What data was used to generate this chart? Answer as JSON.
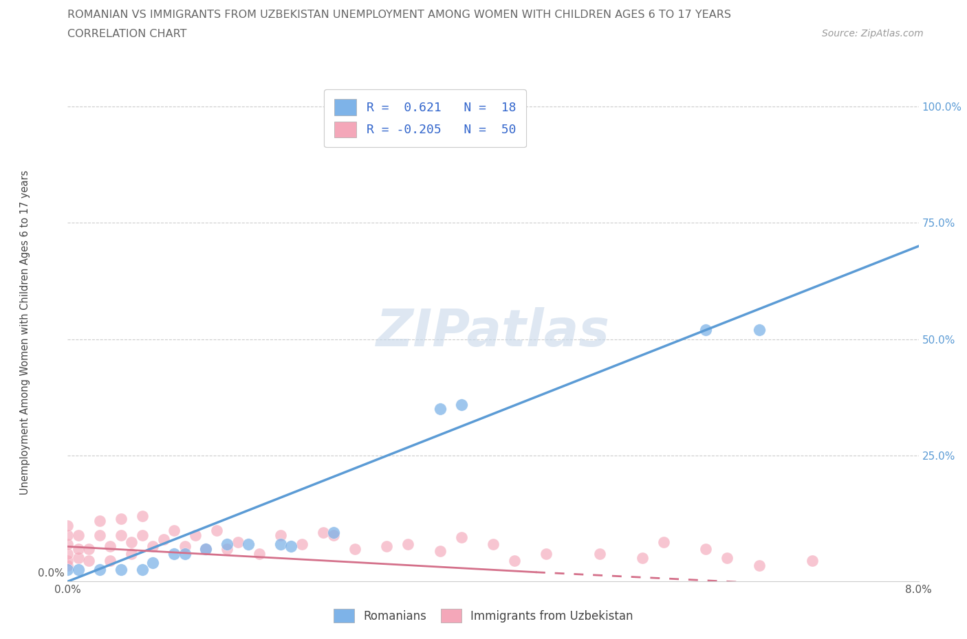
{
  "title_line1": "ROMANIAN VS IMMIGRANTS FROM UZBEKISTAN UNEMPLOYMENT AMONG WOMEN WITH CHILDREN AGES 6 TO 17 YEARS",
  "title_line2": "CORRELATION CHART",
  "source": "Source: ZipAtlas.com",
  "ylabel": "Unemployment Among Women with Children Ages 6 to 17 years",
  "watermark": "ZIPatlas",
  "xlim": [
    0.0,
    0.08
  ],
  "ylim": [
    -0.02,
    1.05
  ],
  "xticks": [
    0.0,
    0.02,
    0.04,
    0.06,
    0.08
  ],
  "xtick_labels": [
    "0.0%",
    "",
    "",
    "",
    "8.0%"
  ],
  "ytick_left_pos": [
    0.0
  ],
  "ytick_left_labels": [
    "0.0%"
  ],
  "yticks_right": [
    0.25,
    0.5,
    0.75,
    1.0
  ],
  "ytick_labels_right": [
    "25.0%",
    "50.0%",
    "75.0%",
    "100.0%"
  ],
  "color_romanian": "#7EB3E8",
  "color_uzbekistan": "#F4A7B9",
  "color_line_romanian": "#5B9BD5",
  "color_line_uzbekistan": "#D4708A",
  "romanians_x": [
    0.0,
    0.001,
    0.003,
    0.005,
    0.007,
    0.008,
    0.01,
    0.011,
    0.013,
    0.015,
    0.017,
    0.02,
    0.021,
    0.025,
    0.035,
    0.037,
    0.06,
    0.065
  ],
  "romanians_y": [
    0.005,
    0.005,
    0.005,
    0.005,
    0.005,
    0.02,
    0.04,
    0.04,
    0.05,
    0.06,
    0.06,
    0.06,
    0.055,
    0.085,
    0.35,
    0.36,
    0.52,
    0.52
  ],
  "uzbekistan_x": [
    0.0,
    0.0,
    0.0,
    0.0,
    0.0,
    0.0,
    0.001,
    0.001,
    0.001,
    0.002,
    0.002,
    0.003,
    0.003,
    0.004,
    0.004,
    0.005,
    0.005,
    0.006,
    0.006,
    0.007,
    0.007,
    0.008,
    0.009,
    0.01,
    0.011,
    0.012,
    0.013,
    0.014,
    0.015,
    0.016,
    0.018,
    0.02,
    0.022,
    0.024,
    0.025,
    0.027,
    0.03,
    0.032,
    0.035,
    0.037,
    0.04,
    0.042,
    0.045,
    0.05,
    0.054,
    0.056,
    0.06,
    0.062,
    0.065,
    0.07
  ],
  "uzbekistan_y": [
    0.015,
    0.025,
    0.04,
    0.06,
    0.08,
    0.1,
    0.03,
    0.05,
    0.08,
    0.025,
    0.05,
    0.08,
    0.11,
    0.025,
    0.055,
    0.08,
    0.115,
    0.04,
    0.065,
    0.08,
    0.12,
    0.055,
    0.07,
    0.09,
    0.055,
    0.08,
    0.05,
    0.09,
    0.05,
    0.065,
    0.04,
    0.08,
    0.06,
    0.085,
    0.08,
    0.05,
    0.055,
    0.06,
    0.045,
    0.075,
    0.06,
    0.025,
    0.04,
    0.04,
    0.03,
    0.065,
    0.05,
    0.03,
    0.015,
    0.025
  ],
  "line_rom_x0": 0.0,
  "line_rom_y0": -0.02,
  "line_rom_x1": 0.08,
  "line_rom_y1": 0.7,
  "line_uz_solid_x0": 0.0,
  "line_uz_solid_y0": 0.055,
  "line_uz_solid_x1": 0.044,
  "line_uz_solid_y1": 0.0,
  "line_uz_dash_x0": 0.044,
  "line_uz_dash_y0": 0.0,
  "line_uz_dash_x1": 0.08,
  "line_uz_dash_y1": -0.04
}
